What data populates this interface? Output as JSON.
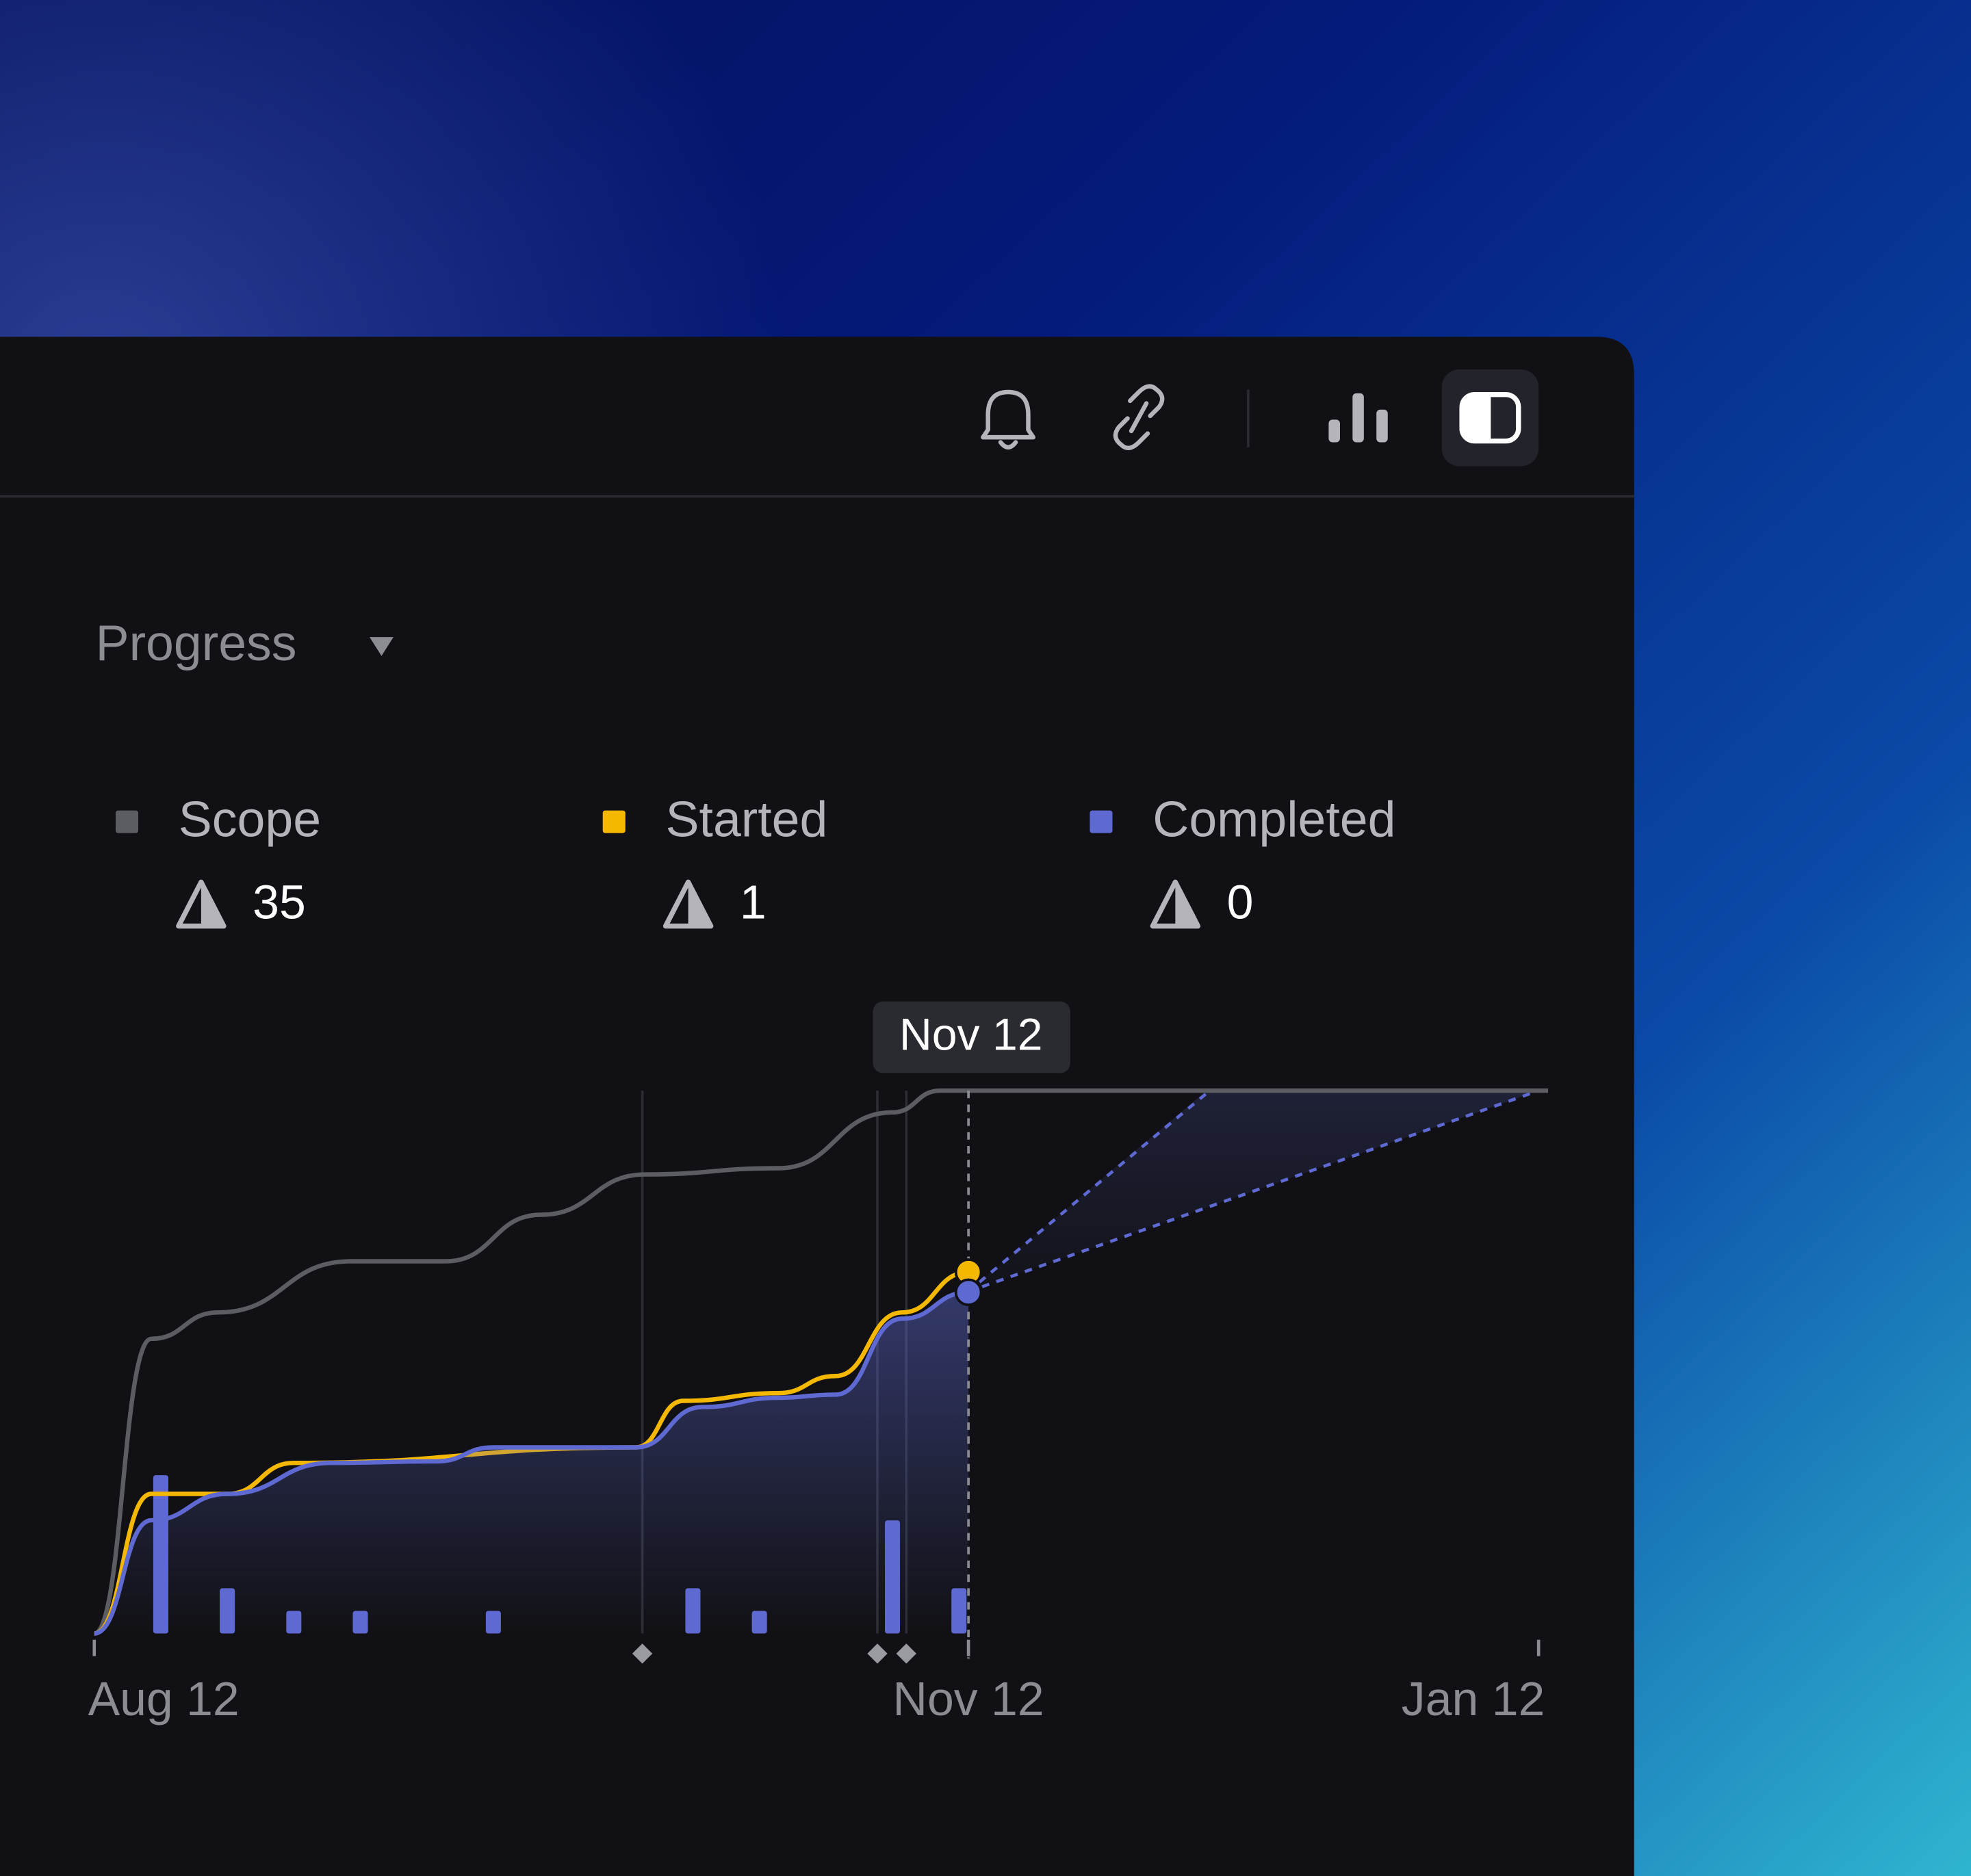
{
  "panel": {
    "title": "Progress"
  },
  "chart_data": {
    "type": "line",
    "series": [
      {
        "name": "Scope",
        "color": "#5c5c63",
        "summary": 35,
        "x": [
          0,
          6,
          13,
          27,
          37,
          47,
          58,
          72,
          84,
          89,
          153
        ],
        "values": [
          0,
          19,
          20.7,
          24,
          24,
          27,
          29.6,
          30,
          33.6,
          35,
          35
        ]
      },
      {
        "name": "Started",
        "color": "#f5b800",
        "summary": 1,
        "x": [
          0,
          6,
          14,
          21,
          57,
          62,
          72,
          78,
          85,
          92
        ],
        "values": [
          0,
          9,
          9,
          11,
          12,
          15,
          15.5,
          16.6,
          20.7,
          23.3
        ]
      },
      {
        "name": "Completed",
        "color": "#5e6ad2",
        "summary": 0,
        "x": [
          0,
          6,
          14,
          25,
          36,
          42,
          57,
          64,
          72,
          78,
          85,
          92
        ],
        "values": [
          0,
          7.3,
          9,
          11,
          11.1,
          12,
          12,
          14.6,
          15.2,
          15.4,
          20.3,
          22
        ]
      },
      {
        "type": "bar",
        "axis": "y2",
        "color": "#5e6ad2",
        "x": [
          7,
          14,
          21,
          28,
          42,
          63,
          70,
          84,
          91
        ],
        "values": [
          7,
          2,
          1,
          1,
          1,
          2,
          1,
          5,
          2
        ]
      }
    ],
    "xlim": [
      0,
      152
    ],
    "xticks": [
      {
        "value": 0,
        "label": "Aug 12"
      },
      {
        "value": 92,
        "label": "Nov 12"
      },
      {
        "value": 152,
        "label": "Jan 12"
      }
    ],
    "ylim": [
      0,
      35
    ],
    "y2lim": [
      0,
      24
    ],
    "hover": {
      "x": 92,
      "label": "Nov 12"
    }
  }
}
